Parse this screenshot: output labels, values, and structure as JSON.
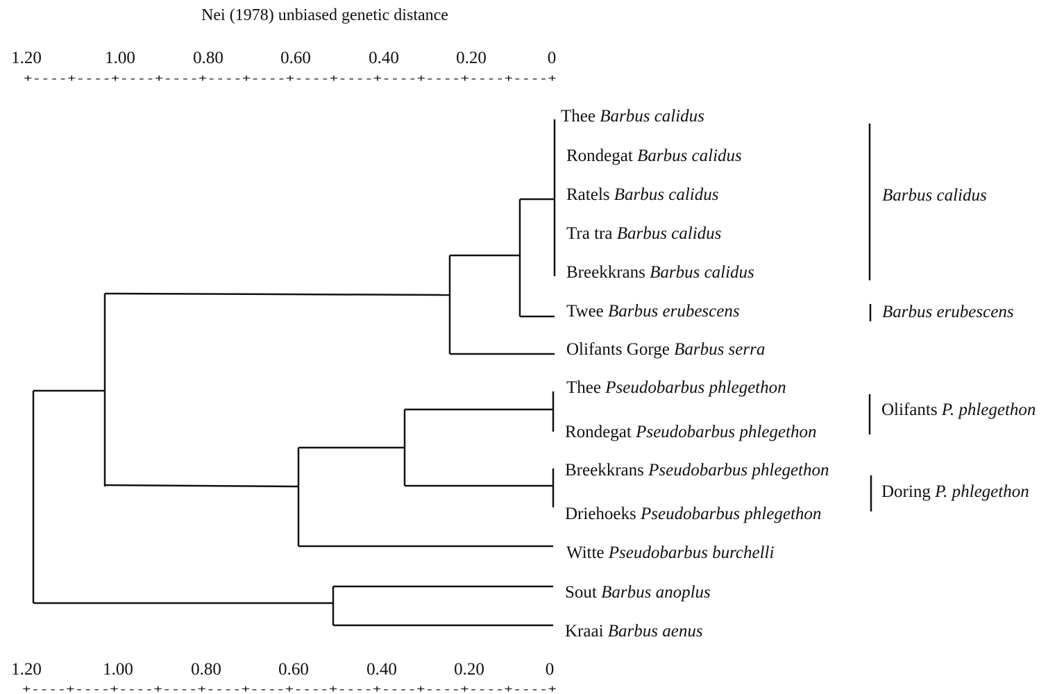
{
  "title": "Nei (1978) unbiased genetic distance",
  "axis": {
    "ticks": [
      "1.20",
      "1.00",
      "0.80",
      "0.60",
      "0.40",
      "0.20",
      "0"
    ],
    "top_dash_line": "+----+----+----+----+----+----+----+----+----+----+----+----+",
    "bottom_dash_line": "+----+----+----+----+----+----+----+----+----+----+----+----+"
  },
  "leaves": [
    {
      "locality": "Thee",
      "species": "Barbus calidus"
    },
    {
      "locality": "Rondegat",
      "species": "Barbus calidus"
    },
    {
      "locality": "Ratels",
      "species": "Barbus calidus"
    },
    {
      "locality": "Tra tra",
      "species": "Barbus calidus"
    },
    {
      "locality": "Breekkrans",
      "species": "Barbus calidus"
    },
    {
      "locality": "Twee",
      "species": "Barbus erubescens"
    },
    {
      "locality": "Olifants Gorge",
      "species": "Barbus serra"
    },
    {
      "locality": "Thee",
      "species": "Pseudobarbus phlegethon"
    },
    {
      "locality": "Rondegat",
      "species": "Pseudobarbus phlegethon"
    },
    {
      "locality": "Breekkrans",
      "species": "Pseudobarbus phlegethon"
    },
    {
      "locality": "Driehoeks",
      "species": "Pseudobarbus phlegethon"
    },
    {
      "locality": "Witte",
      "species": "Pseudobarbus burchelli"
    },
    {
      "locality": "Sout",
      "species": "Barbus anoplus"
    },
    {
      "locality": "Kraai",
      "species": "Barbus aenus"
    }
  ],
  "groups": [
    {
      "prefix": "",
      "name": "Barbus calidus"
    },
    {
      "prefix": "",
      "name": "Barbus erubescens"
    },
    {
      "prefix": "Olifants",
      "name": "P. phlegethon"
    },
    {
      "prefix": "Doring",
      "name": "P. phlegethon"
    }
  ],
  "chart_data": {
    "type": "dendrogram",
    "title": "Nei (1978) unbiased genetic distance",
    "xlim": [
      1.2,
      0
    ],
    "tick_values": [
      1.2,
      1.0,
      0.8,
      0.6,
      0.4,
      0.2,
      0
    ],
    "merges": [
      {
        "members": [
          "Thee Barbus calidus",
          "Rondegat Barbus calidus",
          "Ratels Barbus calidus",
          "Tra tra Barbus calidus",
          "Breekkrans Barbus calidus"
        ],
        "distance": 0.0
      },
      {
        "members": [
          "Barbus calidus cluster",
          "Twee Barbus erubescens"
        ],
        "distance": 0.08
      },
      {
        "members": [
          "calidus-erubescens cluster",
          "Olifants Gorge Barbus serra"
        ],
        "distance": 0.24
      },
      {
        "members": [
          "Thee Pseudobarbus phlegethon",
          "Rondegat Pseudobarbus phlegethon"
        ],
        "distance": 0.0
      },
      {
        "members": [
          "Breekkrans Pseudobarbus phlegethon",
          "Driehoeks Pseudobarbus phlegethon"
        ],
        "distance": 0.0
      },
      {
        "members": [
          "Olifants P. phlegethon",
          "Doring P. phlegethon"
        ],
        "distance": 0.34
      },
      {
        "members": [
          "P. phlegethon cluster",
          "Witte Pseudobarbus burchelli"
        ],
        "distance": 0.58
      },
      {
        "members": [
          "Barbus cluster",
          "Pseudobarbus cluster"
        ],
        "distance": 1.02
      },
      {
        "members": [
          "Sout Barbus anoplus",
          "Kraai Barbus aenus"
        ],
        "distance": 0.51
      },
      {
        "members": [
          "main cluster",
          "anoplus-aenus cluster"
        ],
        "distance": 1.18
      }
    ]
  }
}
